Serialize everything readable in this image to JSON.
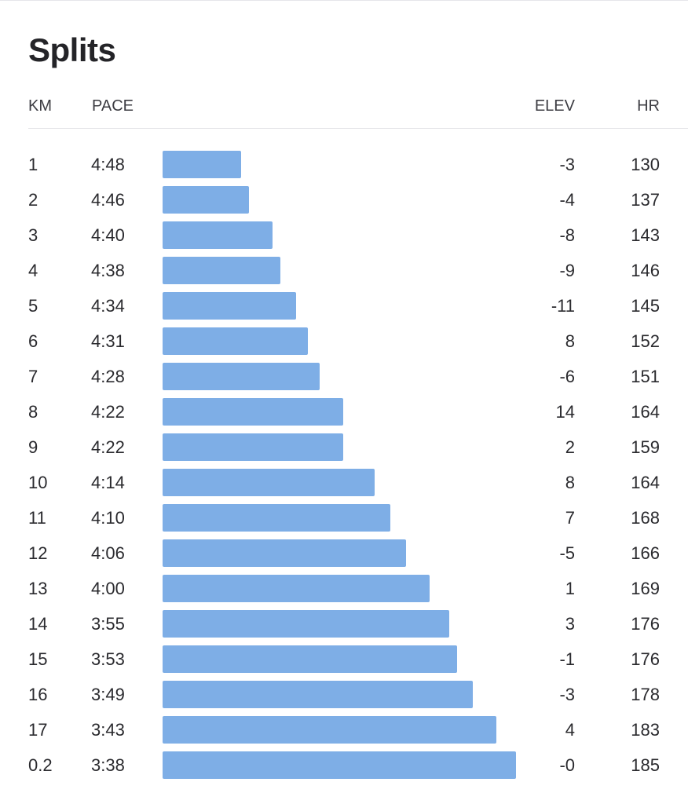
{
  "title": "Splits",
  "columns": {
    "km": "KM",
    "pace": "PACE",
    "elev": "ELEV",
    "hr": "HR"
  },
  "colors": {
    "bar": "#7eaee6",
    "text": "#242428",
    "rule": "#e3e3e7"
  },
  "chart_data": {
    "type": "bar",
    "orientation": "horizontal",
    "categories": [
      "1",
      "2",
      "3",
      "4",
      "5",
      "6",
      "7",
      "8",
      "9",
      "10",
      "11",
      "12",
      "13",
      "14",
      "15",
      "16",
      "17",
      "0.2"
    ],
    "series": [
      {
        "values": [
          "4:48",
          "4:46",
          "4:40",
          "4:38",
          "4:34",
          "4:31",
          "4:28",
          "4:22",
          "4:22",
          "4:14",
          "4:10",
          "4:06",
          "4:00",
          "3:55",
          "3:53",
          "3:49",
          "3:43",
          "3:38"
        ],
        "value_seconds": [
          288,
          286,
          280,
          278,
          274,
          271,
          268,
          262,
          262,
          254,
          250,
          246,
          240,
          235,
          233,
          229,
          223,
          218
        ]
      }
    ],
    "elevation": [
      "-3",
      "-4",
      "-8",
      "-9",
      "-11",
      "8",
      "-6",
      "14",
      "2",
      "8",
      "7",
      "-5",
      "1",
      "3",
      "-1",
      "-3",
      "4",
      "-0"
    ],
    "heart_rate": [
      "130",
      "137",
      "143",
      "146",
      "145",
      "152",
      "151",
      "164",
      "159",
      "164",
      "168",
      "166",
      "169",
      "176",
      "176",
      "178",
      "183",
      "185"
    ]
  }
}
